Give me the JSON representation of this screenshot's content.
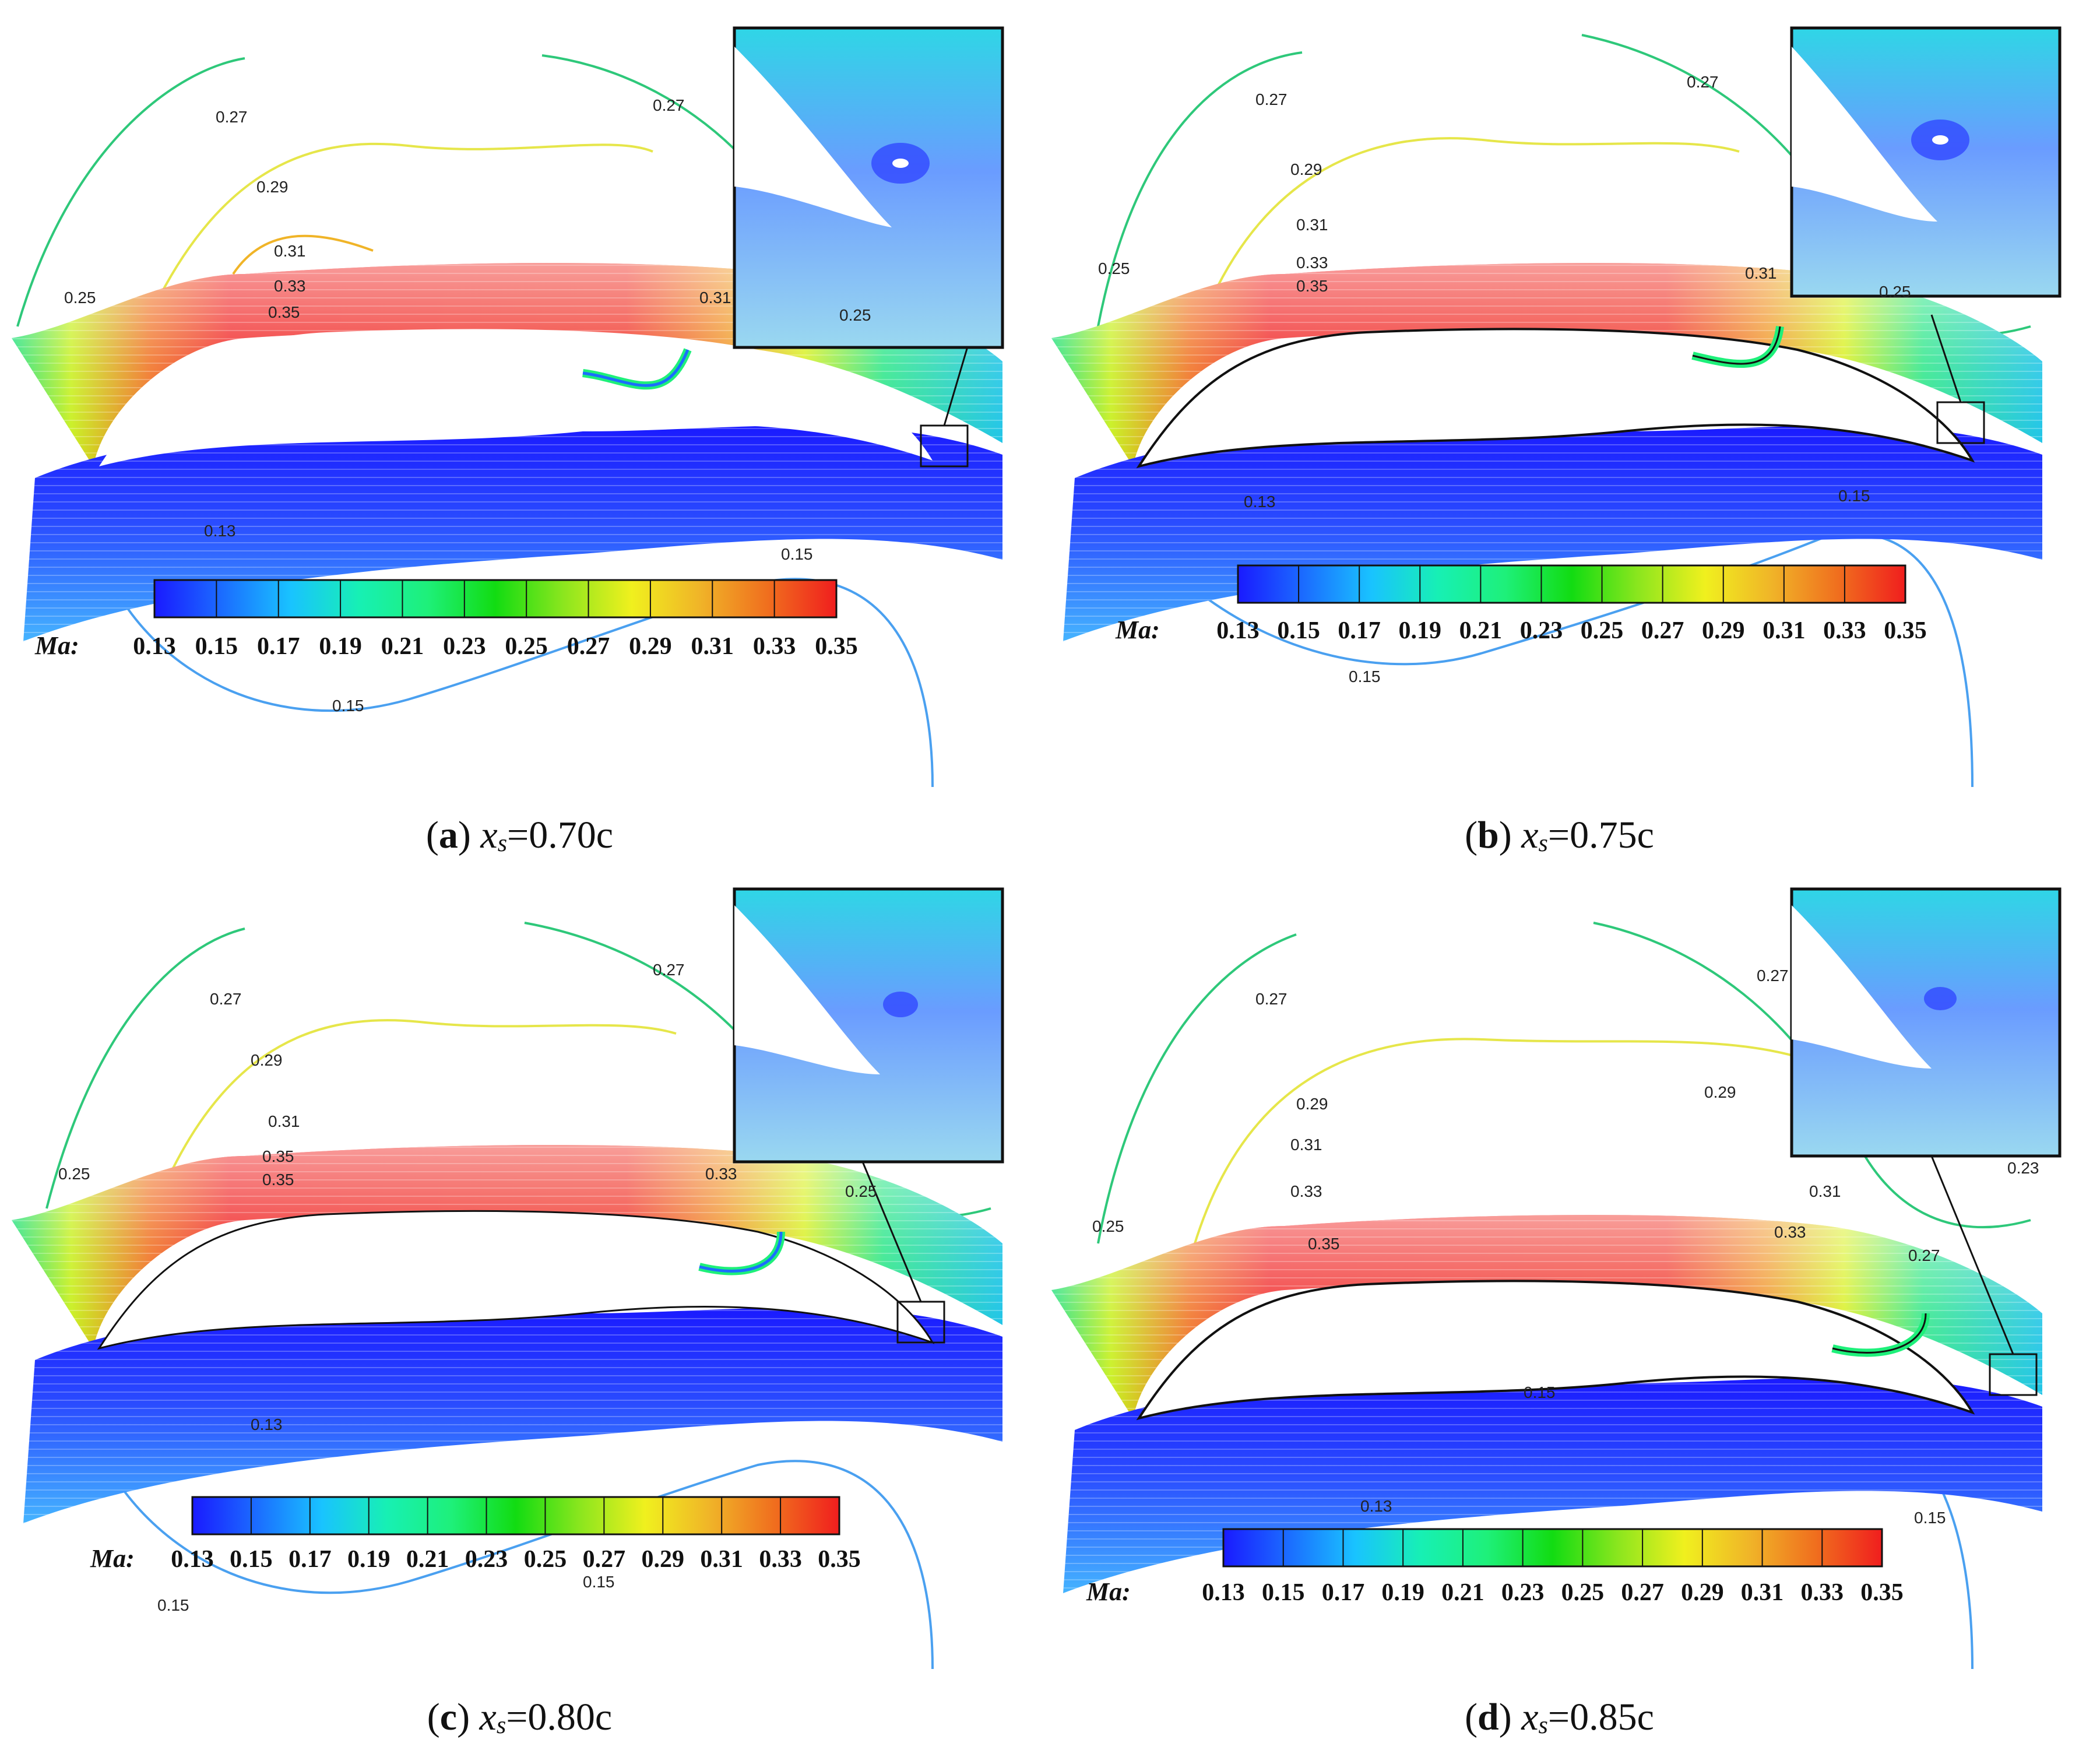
{
  "figure": {
    "legend": {
      "title": "Ma:",
      "ticks": [
        "0.13",
        "0.15",
        "0.17",
        "0.19",
        "0.21",
        "0.23",
        "0.25",
        "0.27",
        "0.29",
        "0.31",
        "0.33",
        "0.35"
      ],
      "colors": [
        "#1a1aff",
        "#1b6dff",
        "#19c3ff",
        "#17f0b4",
        "#1ef07a",
        "#12dc12",
        "#46e61e",
        "#c8f01e",
        "#f0f01e",
        "#f0b428",
        "#f06e1e",
        "#f01e1e"
      ]
    },
    "panels": [
      {
        "letter": "a",
        "caption_var": "x",
        "caption_sub": "s",
        "caption_value": "=0.70c",
        "contour_labels": [
          "0.27",
          "0.27",
          "0.29",
          "0.31",
          "0.33",
          "0.35",
          "0.31",
          "0.25",
          "0.25",
          "0.13",
          "0.15",
          "0.15"
        ]
      },
      {
        "letter": "b",
        "caption_var": "x",
        "caption_sub": "s",
        "caption_value": "=0.75c",
        "contour_labels": [
          "0.27",
          "0.27",
          "0.29",
          "0.31",
          "0.33",
          "0.35",
          "0.31",
          "0.25",
          "0.25",
          "0.13",
          "0.15",
          "0.15"
        ]
      },
      {
        "letter": "c",
        "caption_var": "x",
        "caption_sub": "s",
        "caption_value": "=0.80c",
        "contour_labels": [
          "0.27",
          "0.27",
          "0.29",
          "0.31",
          "0.35",
          "0.35",
          "0.33",
          "0.25",
          "0.25",
          "0.13",
          "0.15",
          "0.15"
        ]
      },
      {
        "letter": "d",
        "caption_var": "x",
        "caption_sub": "s",
        "caption_value": "=0.85c",
        "contour_labels": [
          "0.27",
          "0.27",
          "0.29",
          "0.29",
          "0.31",
          "0.33",
          "0.35",
          "0.31",
          "0.33",
          "0.27",
          "0.23",
          "0.25",
          "0.15",
          "0.13",
          "0.15"
        ]
      }
    ]
  }
}
